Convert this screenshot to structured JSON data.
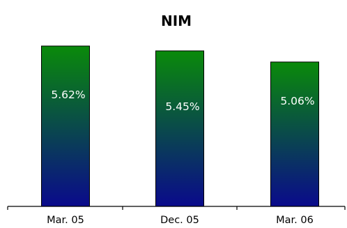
{
  "chart_data": {
    "type": "bar",
    "title": "NIM",
    "categories": [
      "Mar. 05",
      "Dec. 05",
      "Mar. 06"
    ],
    "values": [
      5.62,
      5.45,
      5.06
    ],
    "data_labels": [
      "5.62%",
      "5.45%",
      "5.06%"
    ],
    "xlabel": "",
    "ylabel": "",
    "ylim": [
      0,
      5.62
    ],
    "grid": false,
    "legend": "none",
    "colors": {
      "bar_top": "#0a8a0a",
      "bar_bottom": "#0a0a8c",
      "bar_stroke": "#000000",
      "axis": "#000000",
      "data_label": "#ffffff",
      "background": "#ffffff"
    }
  }
}
